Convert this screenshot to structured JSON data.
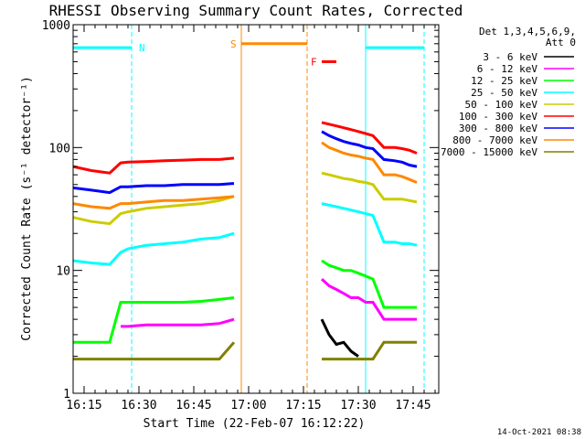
{
  "chart_data": {
    "type": "line",
    "title": "RHESSI Observing Summary Count Rates, Corrected",
    "xlabel": "Start Time (22-Feb-07 16:12:22)",
    "ylabel": "Corrected Count Rate (s⁻¹ detector⁻¹)",
    "x_unit": "minutes after 16:12:22",
    "xlim": [
      0,
      100
    ],
    "ylim": [
      1,
      1000
    ],
    "y_scale": "log",
    "x_ticks": [
      {
        "value": 3,
        "label": "16:15"
      },
      {
        "value": 18,
        "label": "16:30"
      },
      {
        "value": 33,
        "label": "16:45"
      },
      {
        "value": 48,
        "label": "17:00"
      },
      {
        "value": 63,
        "label": "17:15"
      },
      {
        "value": 78,
        "label": "17:30"
      },
      {
        "value": 93,
        "label": "17:45"
      }
    ],
    "y_ticks": [
      {
        "value": 1,
        "label": "1"
      },
      {
        "value": 10,
        "label": "10"
      },
      {
        "value": 100,
        "label": "100"
      },
      {
        "value": 1000,
        "label": "1000"
      }
    ],
    "legend": {
      "placement": "right",
      "header": [
        "Det 1,3,4,5,6,9,",
        "Att 0"
      ]
    },
    "series": [
      {
        "name": "3 - 6 keV",
        "color": "#000000",
        "x": [
          68,
          70,
          72,
          74,
          76,
          78
        ],
        "values": [
          4,
          3,
          2.5,
          2.6,
          2.2,
          2
        ]
      },
      {
        "name": "6 - 12 keV",
        "color": "#ff00ff",
        "x": [
          13,
          15,
          20,
          25,
          30,
          35,
          40,
          44,
          68,
          70,
          72,
          74,
          76,
          78,
          80,
          82,
          85,
          88,
          90,
          92,
          94
        ],
        "values": [
          3.5,
          3.5,
          3.6,
          3.6,
          3.6,
          3.6,
          3.7,
          4,
          8.5,
          7.5,
          7,
          6.5,
          6,
          6,
          5.5,
          5.5,
          4,
          4,
          4,
          4,
          4
        ]
      },
      {
        "name": "12 - 25 keV",
        "color": "#00ff00",
        "x": [
          0,
          5,
          10,
          13,
          15,
          20,
          25,
          30,
          35,
          40,
          44,
          68,
          70,
          72,
          74,
          76,
          78,
          80,
          82,
          85,
          88,
          90,
          92,
          94
        ],
        "values": [
          2.6,
          2.6,
          2.6,
          5.5,
          5.5,
          5.5,
          5.5,
          5.5,
          5.6,
          5.8,
          6,
          12,
          11,
          10.5,
          10,
          10,
          9.5,
          9,
          8.5,
          5,
          5,
          5,
          5,
          5
        ]
      },
      {
        "name": "25 - 50 keV",
        "color": "#00ffff",
        "x": [
          0,
          5,
          10,
          13,
          15,
          20,
          25,
          30,
          35,
          40,
          44,
          68,
          70,
          72,
          74,
          76,
          78,
          80,
          82,
          85,
          88,
          90,
          92,
          94
        ],
        "values": [
          12,
          11.5,
          11.2,
          14,
          15,
          16,
          16.5,
          17,
          18,
          18.5,
          20,
          35,
          34,
          33,
          32,
          31,
          30,
          29,
          28,
          17,
          17,
          16.5,
          16.5,
          16
        ]
      },
      {
        "name": "50 - 100 keV",
        "color": "#cccc00",
        "x": [
          0,
          5,
          10,
          13,
          15,
          20,
          25,
          30,
          35,
          40,
          44,
          68,
          70,
          72,
          74,
          76,
          78,
          80,
          82,
          85,
          88,
          90,
          92,
          94
        ],
        "values": [
          27,
          25,
          24,
          29,
          30,
          32,
          33,
          34,
          35,
          37,
          40,
          62,
          60,
          58,
          56,
          55,
          53,
          52,
          50,
          38,
          38,
          38,
          37,
          36
        ]
      },
      {
        "name": "100 - 300 keV",
        "color": "#ff0000",
        "x": [
          0,
          5,
          10,
          13,
          15,
          20,
          25,
          30,
          35,
          40,
          44,
          68,
          70,
          72,
          74,
          76,
          78,
          80,
          82,
          85,
          88,
          90,
          92,
          94
        ],
        "values": [
          70,
          65,
          62,
          75,
          76,
          77,
          78,
          79,
          80,
          80,
          82,
          160,
          155,
          150,
          145,
          140,
          135,
          130,
          125,
          100,
          100,
          98,
          95,
          90
        ]
      },
      {
        "name": "300 - 800 keV",
        "color": "#0000ff",
        "x": [
          0,
          5,
          10,
          13,
          15,
          20,
          25,
          30,
          35,
          40,
          44,
          68,
          70,
          72,
          74,
          76,
          78,
          80,
          82,
          85,
          88,
          90,
          92,
          94
        ],
        "values": [
          47,
          45,
          43,
          48,
          48,
          49,
          49,
          50,
          50,
          50,
          51,
          135,
          125,
          118,
          112,
          108,
          105,
          100,
          98,
          80,
          78,
          76,
          72,
          70
        ]
      },
      {
        "name": "800 - 7000 keV",
        "color": "#ff8800",
        "x": [
          0,
          5,
          10,
          13,
          15,
          20,
          25,
          30,
          35,
          40,
          44,
          68,
          70,
          72,
          74,
          76,
          78,
          80,
          82,
          85,
          88,
          90,
          92,
          94
        ],
        "values": [
          35,
          33,
          32,
          35,
          35,
          36,
          37,
          37,
          38,
          39,
          40,
          110,
          100,
          95,
          90,
          87,
          85,
          82,
          80,
          60,
          60,
          58,
          55,
          52
        ]
      },
      {
        "name": "7000 - 15000 keV",
        "color": "#808000",
        "x": [
          0,
          5,
          10,
          13,
          15,
          20,
          25,
          30,
          35,
          40,
          44,
          68,
          70,
          72,
          74,
          76,
          78,
          80,
          82,
          85,
          88,
          90,
          92,
          94
        ],
        "values": [
          1.9,
          1.9,
          1.9,
          1.9,
          1.9,
          1.9,
          1.9,
          1.9,
          1.9,
          1.9,
          2.6,
          1.9,
          1.9,
          1.9,
          1.9,
          1.9,
          1.9,
          1.9,
          1.9,
          2.6,
          2.6,
          2.6,
          2.6,
          2.6
        ]
      }
    ],
    "flag_bars": [
      {
        "label": "N",
        "color": "#00ffff",
        "x_start": 0,
        "x_end": 16,
        "y": 650,
        "label_x": 18
      },
      {
        "label": "N",
        "color": "#00ffff",
        "x_start": 80,
        "x_end": 96,
        "y": 650,
        "label_x": null
      },
      {
        "label": "S",
        "color": "#ff8800",
        "x_start": 46,
        "x_end": 64,
        "y": 700,
        "label_x": 43
      },
      {
        "label": "F",
        "color": "#ff0000",
        "x_start": 68,
        "x_end": 72,
        "y": 500,
        "label_x": 65
      }
    ],
    "markers": [
      {
        "color": "#00ffff",
        "x": 0,
        "style": "solid"
      },
      {
        "color": "#00ffff",
        "x": 16,
        "style": "dashed"
      },
      {
        "color": "#ff8800",
        "x": 46,
        "style": "solid"
      },
      {
        "color": "#ff8800",
        "x": 64,
        "style": "dashed"
      },
      {
        "color": "#00ffff",
        "x": 80,
        "style": "solid"
      },
      {
        "color": "#00ffff",
        "x": 96,
        "style": "dashed"
      }
    ]
  },
  "footer": {
    "timestamp": "14-Oct-2021 08:38"
  }
}
